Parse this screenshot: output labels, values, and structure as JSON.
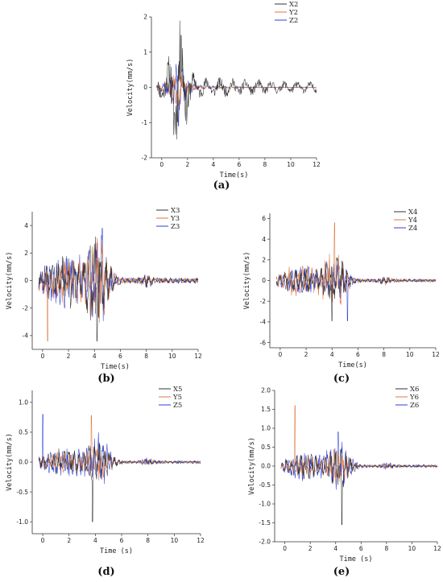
{
  "series_colors": {
    "X": "#333333",
    "Y": "#e0743a",
    "Z": "#2f3fd6"
  },
  "chart_data": [
    {
      "type": "line",
      "caption": "(a)",
      "xlabel": "Time(s)",
      "ylabel": "Velocity(mm/s)",
      "xlim": [
        -0.8,
        12
      ],
      "ylim": [
        -2,
        2
      ],
      "xticks": [
        0,
        2,
        4,
        6,
        8,
        10,
        12
      ],
      "yticks": [
        -2,
        -1,
        0,
        1,
        2
      ],
      "grid": false,
      "legend": "top-right",
      "series": [
        {
          "name": "X2",
          "amp": 1.3,
          "decay": 0.08,
          "f": 1.0,
          "seed": 11,
          "peak": {
            "x": 1.5,
            "y": 1.48
          }
        },
        {
          "name": "Y2",
          "amp": 0.35,
          "decay": 0.3,
          "f": 1.6,
          "seed": 23,
          "peak": {
            "x": 1.1,
            "y": -0.45
          }
        },
        {
          "name": "Z2",
          "amp": 0.45,
          "decay": 0.35,
          "f": 2.1,
          "seed": 37,
          "peak": {
            "x": 1.3,
            "y": -1.1
          }
        }
      ]
    },
    {
      "type": "line",
      "caption": "(b)",
      "xlabel": "Time(s)",
      "ylabel": "Velocity(mm/s)",
      "xlim": [
        -0.8,
        12
      ],
      "ylim": [
        -5,
        5
      ],
      "xticks": [
        0,
        2,
        4,
        6,
        8,
        10,
        12
      ],
      "yticks": [
        -4,
        -2,
        0,
        2,
        4
      ],
      "grid": false,
      "legend": "top-right",
      "series": [
        {
          "name": "X3",
          "amp": 2.6,
          "decay": 0.45,
          "f": 2.4,
          "seed": 41,
          "peak": {
            "x": 4.2,
            "y": -4.4
          }
        },
        {
          "name": "Y3",
          "amp": 2.4,
          "decay": 0.45,
          "f": 2.8,
          "seed": 53,
          "peak": {
            "x": 0.4,
            "y": -4.4
          }
        },
        {
          "name": "Z3",
          "amp": 2.6,
          "decay": 0.45,
          "f": 3.0,
          "seed": 67,
          "peak": {
            "x": 4.6,
            "y": 3.8
          }
        }
      ]
    },
    {
      "type": "line",
      "caption": "(c)",
      "xlabel": "Time(s)",
      "ylabel": "Velocity(mm/s)",
      "xlim": [
        -0.8,
        12
      ],
      "ylim": [
        -6.5,
        6.5
      ],
      "xticks": [
        0,
        2,
        4,
        6,
        8,
        10,
        12
      ],
      "yticks": [
        -6,
        -4,
        -2,
        0,
        2,
        4,
        6
      ],
      "grid": false,
      "legend": "top-right",
      "series": [
        {
          "name": "X4",
          "amp": 1.8,
          "decay": 0.45,
          "f": 2.5,
          "seed": 71,
          "peak": {
            "x": 4.0,
            "y": -3.9
          }
        },
        {
          "name": "Y4",
          "amp": 2.2,
          "decay": 0.45,
          "f": 2.9,
          "seed": 83,
          "peak": {
            "x": 4.2,
            "y": 5.6
          }
        },
        {
          "name": "Z4",
          "amp": 1.8,
          "decay": 0.45,
          "f": 3.1,
          "seed": 97,
          "peak": {
            "x": 5.2,
            "y": -3.9
          }
        }
      ]
    },
    {
      "type": "line",
      "caption": "(d)",
      "xlabel": "Time (s)",
      "ylabel": "Velocity(mm/s)",
      "xlim": [
        -0.8,
        12
      ],
      "ylim": [
        -1.2,
        1.2
      ],
      "xticks": [
        0,
        2,
        4,
        6,
        8,
        10,
        12
      ],
      "yticks": [
        -1.0,
        -0.5,
        0.0,
        0.5,
        1.0
      ],
      "grid": false,
      "legend": "top-right",
      "series": [
        {
          "name": "X5",
          "amp": 0.3,
          "decay": 0.4,
          "f": 2.6,
          "seed": 101,
          "peak": {
            "x": 3.8,
            "y": -1.0
          }
        },
        {
          "name": "Y5",
          "amp": 0.25,
          "decay": 0.4,
          "f": 3.0,
          "seed": 113,
          "peak": {
            "x": 3.7,
            "y": 0.78
          }
        },
        {
          "name": "Z5",
          "amp": 0.35,
          "decay": 0.4,
          "f": 3.3,
          "seed": 127,
          "peak": {
            "x": 0.0,
            "y": 0.8
          }
        }
      ]
    },
    {
      "type": "line",
      "caption": "(e)",
      "xlabel": "Time (s)",
      "ylabel": "Velocity(mm/s)",
      "xlim": [
        -0.8,
        12
      ],
      "ylim": [
        -2.0,
        2.0
      ],
      "xticks": [
        0,
        2,
        4,
        6,
        8,
        10,
        12
      ],
      "yticks": [
        -2.0,
        -1.5,
        -1.0,
        -0.5,
        0.0,
        0.5,
        1.0,
        1.5,
        2.0
      ],
      "grid": false,
      "legend": "top-right",
      "series": [
        {
          "name": "X6",
          "amp": 0.45,
          "decay": 0.35,
          "f": 2.6,
          "seed": 131,
          "peak": {
            "x": 4.5,
            "y": -1.55
          }
        },
        {
          "name": "Y6",
          "amp": 0.35,
          "decay": 0.35,
          "f": 3.0,
          "seed": 149,
          "peak": {
            "x": 0.8,
            "y": 1.6
          }
        },
        {
          "name": "Z6",
          "amp": 0.5,
          "decay": 0.35,
          "f": 3.4,
          "seed": 157,
          "peak": {
            "x": 4.2,
            "y": 0.9
          }
        }
      ]
    }
  ]
}
